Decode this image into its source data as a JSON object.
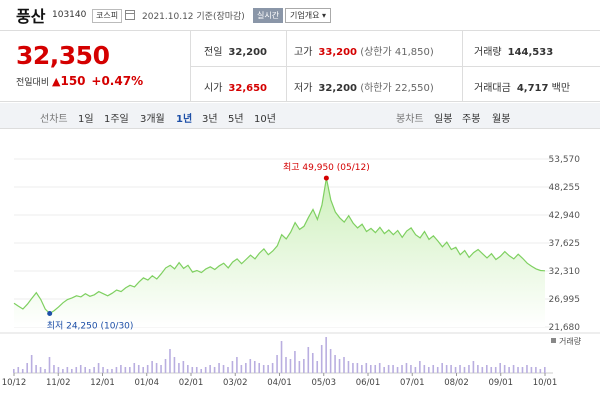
{
  "header": {
    "name": "풍산",
    "code": "103140",
    "market": "코스피",
    "as_of": "2021.10.12 기준(장마감)",
    "realtime_btn": "실시간",
    "company_info_btn": "기업개요 ▾"
  },
  "quote": {
    "price": "32,350",
    "change_label": "전일대비",
    "change_arrow": "▲",
    "change": "150",
    "change_pct": "+0.47%",
    "prev_close_label": "전일",
    "prev_close": "32,200",
    "open_label": "시가",
    "open": "32,650",
    "high_label": "고가",
    "high": "33,200",
    "upper_limit": "(상한가 41,850)",
    "low_label": "저가",
    "low": "32,200",
    "lower_limit": "(하한가 22,550)",
    "volume_label": "거래량",
    "volume": "144,533",
    "amount_label": "거래대금",
    "amount": "4,717",
    "amount_unit": "백만"
  },
  "toolbar": {
    "line_label": "선차트",
    "periods": [
      "1일",
      "1주일",
      "3개월",
      "1년",
      "3년",
      "5년",
      "10년"
    ],
    "active_period": "1년",
    "candle_label": "봉차트",
    "candles": [
      "일봉",
      "주봉",
      "월봉"
    ]
  },
  "chart_data": {
    "type": "area",
    "colors": {
      "line": "#7fd061",
      "fill_top": "#cdf0bb",
      "fill_bottom": "#ffffff",
      "volume": "#b9aee0",
      "max": "#d40000",
      "min": "#1d4fa7"
    },
    "y_ticks": [
      "53,570",
      "48,255",
      "42,940",
      "37,625",
      "32,310",
      "26,995",
      "21,680"
    ],
    "ylim": [
      21680,
      53570
    ],
    "x_ticks": [
      "10/12",
      "11/02",
      "12/01",
      "01/04",
      "02/01",
      "03/02",
      "04/01",
      "05/03",
      "06/01",
      "07/01",
      "08/02",
      "09/01",
      "10/01"
    ],
    "max_label": "최고 49,950 (05/12)",
    "min_label": "최저 24,250 (10/30)",
    "volume_label": "거래량",
    "values": [
      26200,
      25600,
      25100,
      26000,
      27100,
      28200,
      26900,
      25100,
      24250,
      24800,
      25500,
      26300,
      26900,
      27200,
      27600,
      27400,
      28000,
      27500,
      27800,
      28400,
      28000,
      27600,
      28100,
      28700,
      28400,
      29100,
      29600,
      29300,
      30200,
      31000,
      30600,
      31400,
      30800,
      31800,
      32900,
      33400,
      32700,
      33900,
      32800,
      33400,
      32100,
      32400,
      32000,
      32700,
      33100,
      32600,
      33300,
      33800,
      32900,
      34000,
      34600,
      33700,
      34500,
      35300,
      34600,
      35700,
      36500,
      35400,
      36100,
      37100,
      39200,
      38400,
      39700,
      41500,
      40200,
      40800,
      42500,
      44000,
      42100,
      44800,
      49950,
      45800,
      43500,
      42400,
      41600,
      42800,
      41400,
      40500,
      41200,
      39800,
      40400,
      39600,
      40600,
      39400,
      40100,
      39200,
      40000,
      38700,
      39900,
      40500,
      39200,
      38600,
      39800,
      38300,
      39000,
      38000,
      36900,
      37800,
      36400,
      36800,
      35400,
      36200,
      34900,
      35800,
      36400,
      35600,
      34800,
      35600,
      34500,
      35100,
      36000,
      35200,
      34600,
      35500,
      34700,
      33800,
      33200,
      32700,
      32400,
      32350
    ],
    "volumes": [
      2,
      3,
      2,
      5,
      9,
      4,
      3,
      2,
      8,
      4,
      3,
      2,
      3,
      2,
      3,
      4,
      3,
      2,
      3,
      5,
      3,
      2,
      2,
      3,
      4,
      3,
      3,
      5,
      4,
      3,
      4,
      6,
      5,
      4,
      7,
      12,
      8,
      5,
      6,
      4,
      3,
      3,
      2,
      3,
      4,
      3,
      5,
      4,
      3,
      6,
      8,
      4,
      5,
      7,
      6,
      5,
      4,
      4,
      5,
      9,
      16,
      8,
      7,
      11,
      6,
      7,
      13,
      10,
      6,
      14,
      18,
      12,
      9,
      7,
      8,
      6,
      5,
      5,
      4,
      5,
      4,
      4,
      5,
      3,
      4,
      4,
      3,
      4,
      5,
      4,
      3,
      6,
      4,
      3,
      4,
      3,
      5,
      4,
      4,
      3,
      4,
      3,
      4,
      6,
      4,
      3,
      4,
      3,
      3,
      5,
      4,
      3,
      4,
      3,
      3,
      4,
      3,
      3,
      2,
      3
    ]
  }
}
